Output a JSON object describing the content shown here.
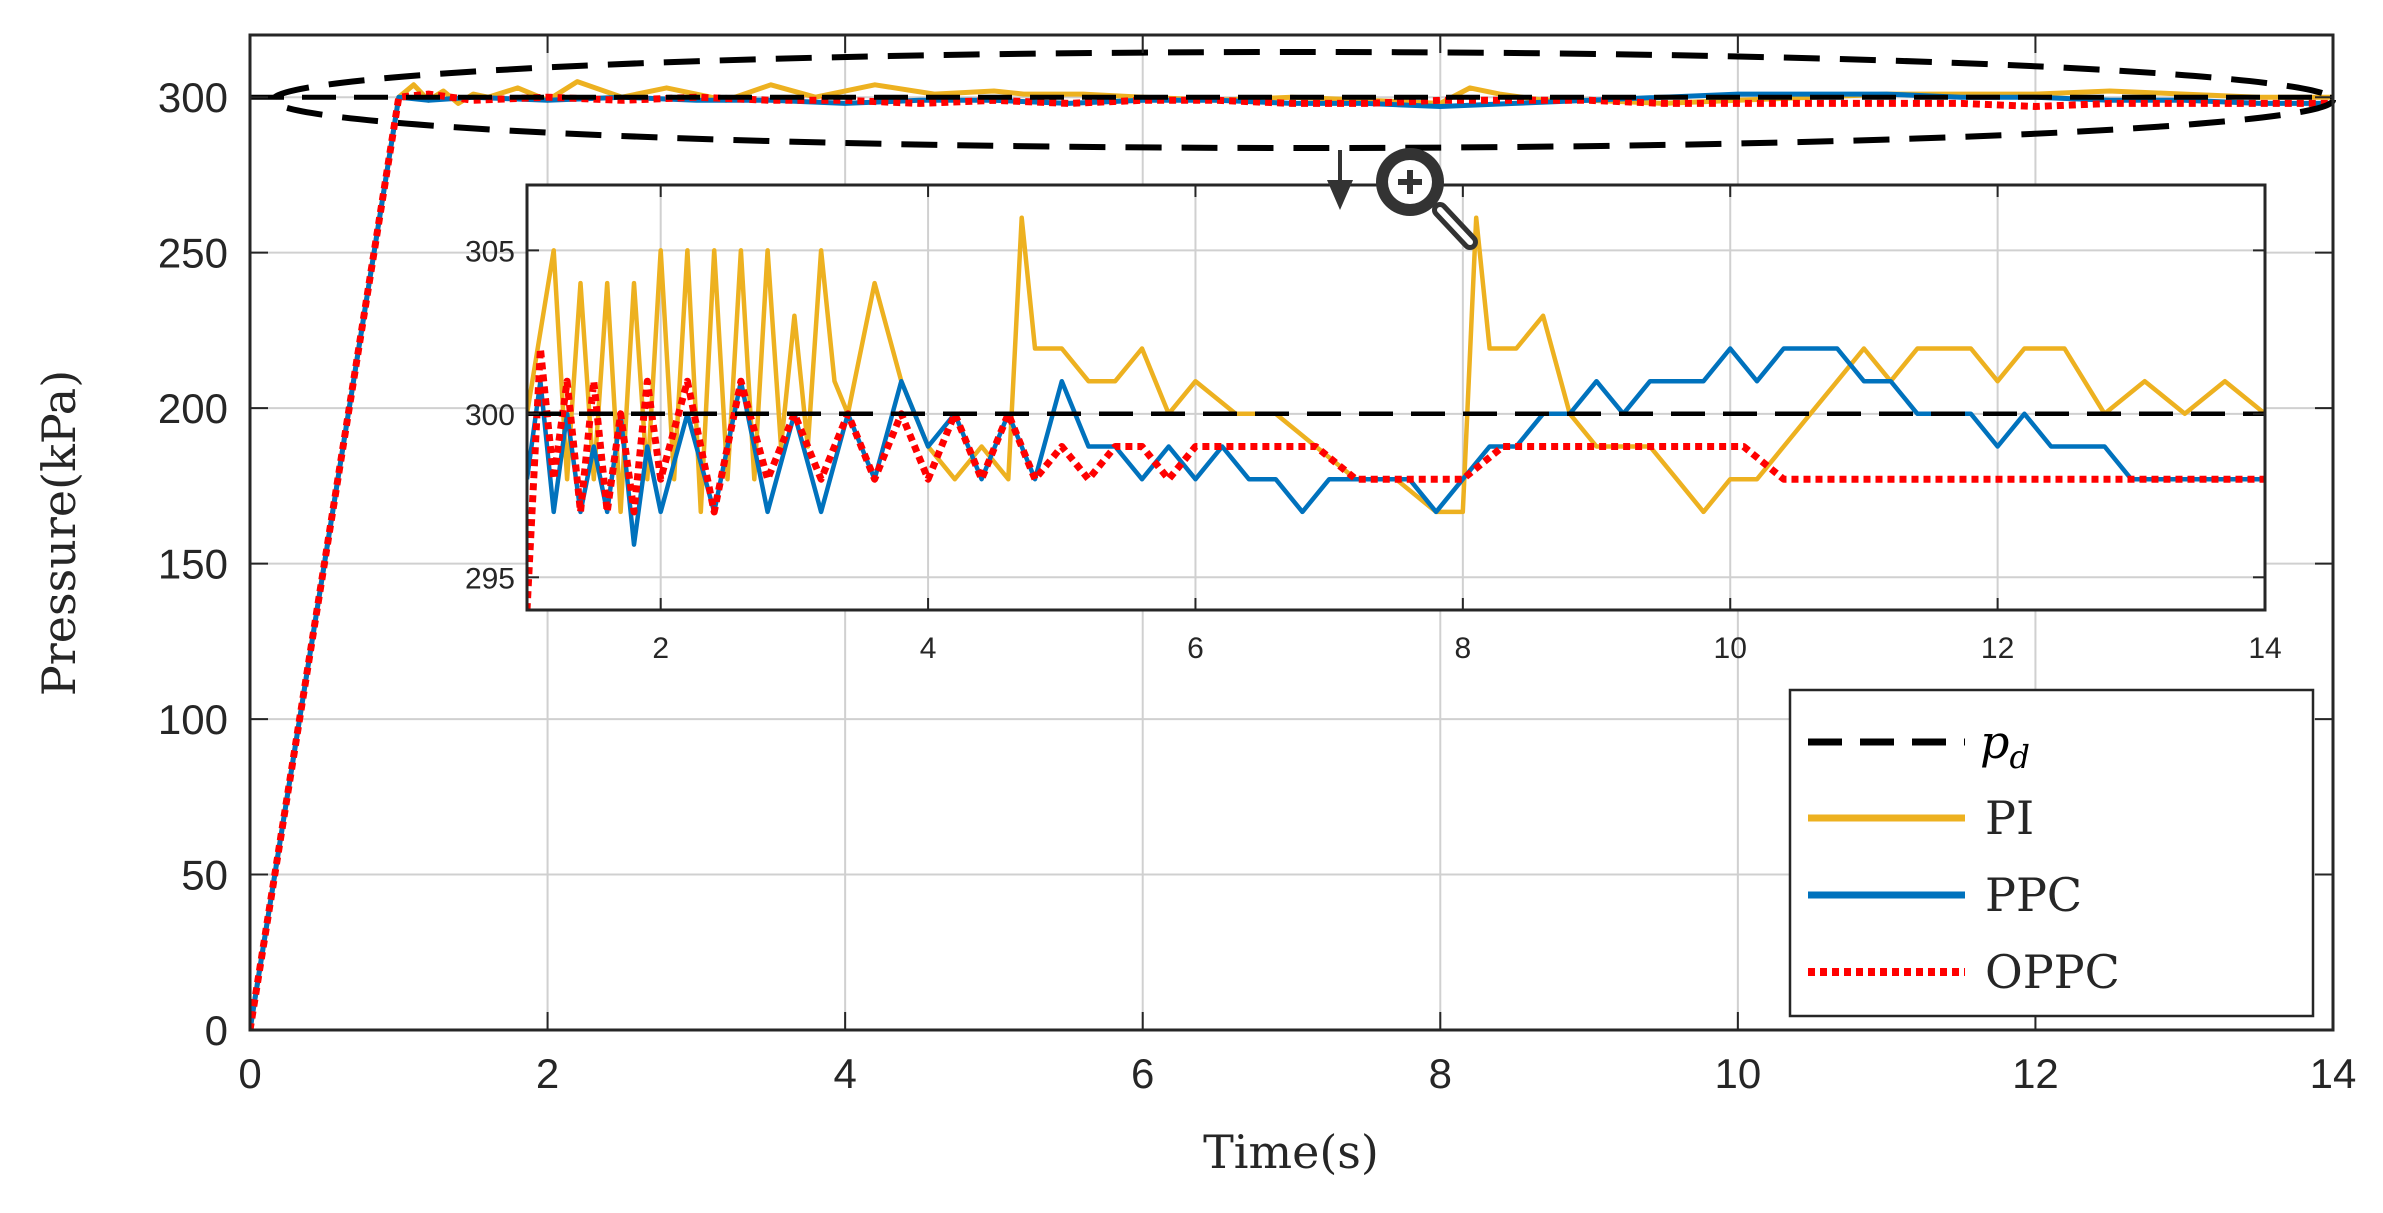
{
  "chart_data": [
    {
      "id": "main",
      "type": "line",
      "title": "",
      "xlabel": "Time(s)",
      "ylabel": "Pressure(kPa)",
      "xlim": [
        0,
        14
      ],
      "ylim": [
        0,
        320
      ],
      "grid": true,
      "x_ticks": [
        "0",
        "2",
        "4",
        "6",
        "8",
        "10",
        "12",
        "14"
      ],
      "y_ticks": [
        "0",
        "50",
        "100",
        "150",
        "200",
        "250",
        "300"
      ],
      "legend_position": "bottom-right",
      "legend": {
        "pd_base": "p",
        "pd_sub": "d",
        "labels": [
          "PI",
          "PPC",
          "OPPC"
        ]
      },
      "annotation": "dashed ellipse around steady-state region near 300 kPa with magnifier icon pointing to inset",
      "series": [
        {
          "name": "p_d",
          "color": "#000000",
          "style": "dashed",
          "x": [
            0,
            14
          ],
          "y": [
            300,
            300
          ]
        },
        {
          "name": "PI",
          "color": "#EDB120",
          "style": "solid",
          "x": [
            0,
            1,
            1.1,
            1.2,
            1.3,
            1.4,
            1.5,
            1.6,
            1.8,
            2.0,
            2.2,
            2.5,
            2.8,
            3.2,
            3.5,
            3.8,
            4.2,
            4.6,
            5.0,
            5.2,
            5.6,
            6.0,
            6.5,
            7.0,
            7.5,
            8.0,
            8.2,
            8.4,
            8.7,
            9.0,
            9.5,
            10.0,
            10.5,
            11.0,
            11.5,
            12.0,
            12.5,
            13.0,
            13.5,
            14.0
          ],
          "y": [
            0,
            300,
            304,
            299,
            302,
            298,
            301,
            300,
            303,
            299,
            305,
            300,
            303,
            299,
            304,
            300,
            304,
            301,
            302,
            301,
            301,
            300,
            299,
            300,
            299,
            298,
            303,
            301,
            299,
            299,
            298,
            299,
            300,
            301,
            301,
            301,
            302,
            301,
            300,
            300
          ]
        },
        {
          "name": "PPC",
          "color": "#0072BD",
          "style": "solid",
          "x": [
            0,
            1,
            1.2,
            1.5,
            2.0,
            2.5,
            3.0,
            3.5,
            4.0,
            4.5,
            5.0,
            5.5,
            6.0,
            6.5,
            7.0,
            7.5,
            8.0,
            8.5,
            9.0,
            9.5,
            10.0,
            10.5,
            11.0,
            11.5,
            12.0,
            12.5,
            13.0,
            13.5,
            14.0
          ],
          "y": [
            0,
            300,
            299,
            300,
            299,
            300,
            299,
            299,
            298,
            299,
            299,
            298,
            299,
            299,
            298,
            298,
            297,
            298,
            299,
            300,
            301,
            301,
            301,
            300,
            300,
            299,
            299,
            298,
            298
          ]
        },
        {
          "name": "OPPC",
          "color": "#FF0000",
          "style": "dotted",
          "x": [
            0,
            1,
            1.2,
            1.5,
            2.0,
            2.5,
            3.0,
            3.5,
            4.0,
            4.5,
            5.0,
            5.5,
            6.0,
            6.5,
            7.0,
            7.5,
            8.0,
            8.5,
            9.0,
            9.5,
            10.0,
            10.5,
            11.0,
            11.5,
            12.0,
            12.5,
            13.0,
            13.5,
            14.0
          ],
          "y": [
            0,
            300,
            301,
            299,
            300,
            299,
            300,
            299,
            299,
            298,
            299,
            298,
            299,
            299,
            298,
            298,
            299,
            299,
            299,
            298,
            298,
            298,
            298,
            298,
            297,
            298,
            298,
            298,
            298
          ]
        }
      ]
    },
    {
      "id": "inset",
      "type": "line",
      "title": "",
      "xlabel": "",
      "ylabel": "",
      "xlim": [
        1,
        14
      ],
      "ylim": [
        294,
        307
      ],
      "grid": true,
      "x_ticks": [
        "2",
        "4",
        "6",
        "8",
        "10",
        "12",
        "14"
      ],
      "y_ticks": [
        "295",
        "300",
        "305"
      ],
      "series": [
        {
          "name": "p_d",
          "color": "#000000",
          "style": "dashed",
          "x": [
            1,
            14
          ],
          "y": [
            300,
            300
          ]
        },
        {
          "name": "PI",
          "color": "#EDB120",
          "style": "solid",
          "x": [
            1.0,
            1.2,
            1.3,
            1.4,
            1.5,
            1.6,
            1.7,
            1.8,
            1.9,
            2.0,
            2.1,
            2.2,
            2.3,
            2.4,
            2.5,
            2.6,
            2.7,
            2.8,
            2.9,
            3.0,
            3.1,
            3.2,
            3.3,
            3.4,
            3.6,
            3.8,
            4.0,
            4.2,
            4.4,
            4.6,
            4.7,
            4.8,
            5.0,
            5.2,
            5.4,
            5.6,
            5.8,
            6.0,
            6.3,
            6.6,
            6.9,
            7.2,
            7.5,
            7.8,
            8.0,
            8.1,
            8.2,
            8.4,
            8.6,
            8.8,
            9.0,
            9.2,
            9.4,
            9.6,
            9.8,
            10.0,
            10.2,
            10.4,
            10.6,
            10.8,
            11.0,
            11.2,
            11.4,
            11.6,
            11.8,
            12.0,
            12.2,
            12.5,
            12.8,
            13.1,
            13.4,
            13.7,
            14.0
          ],
          "y": [
            300,
            305,
            298,
            304,
            298,
            304,
            297,
            304,
            298,
            305,
            298,
            305,
            297,
            305,
            298,
            305,
            298,
            305,
            299,
            303,
            299,
            305,
            301,
            300,
            304,
            301,
            299,
            298,
            299,
            298,
            306,
            302,
            302,
            301,
            301,
            302,
            300,
            301,
            300,
            300,
            299,
            298,
            298,
            297,
            297,
            306,
            302,
            302,
            303,
            300,
            299,
            299,
            299,
            298,
            297,
            298,
            298,
            299,
            300,
            301,
            302,
            301,
            302,
            302,
            302,
            301,
            302,
            302,
            300,
            301,
            300,
            301,
            300
          ]
        },
        {
          "name": "PPC",
          "color": "#0072BD",
          "style": "solid",
          "x": [
            1.0,
            1.1,
            1.2,
            1.3,
            1.4,
            1.5,
            1.6,
            1.7,
            1.8,
            1.9,
            2.0,
            2.2,
            2.4,
            2.6,
            2.8,
            3.0,
            3.2,
            3.4,
            3.6,
            3.8,
            4.0,
            4.2,
            4.4,
            4.6,
            4.8,
            5.0,
            5.2,
            5.4,
            5.6,
            5.8,
            6.0,
            6.2,
            6.4,
            6.6,
            6.8,
            7.0,
            7.2,
            7.4,
            7.6,
            7.8,
            8.0,
            8.2,
            8.4,
            8.6,
            8.8,
            9.0,
            9.2,
            9.4,
            9.6,
            9.8,
            10.0,
            10.2,
            10.4,
            10.6,
            10.8,
            11.0,
            11.2,
            11.4,
            11.6,
            11.8,
            12.0,
            12.2,
            12.4,
            12.6,
            12.8,
            13.0,
            13.2,
            13.4,
            13.6,
            13.8,
            14.0
          ],
          "y": [
            298,
            301,
            297,
            300,
            297,
            299,
            297,
            300,
            296,
            299,
            297,
            300,
            297,
            301,
            297,
            300,
            297,
            300,
            298,
            301,
            299,
            300,
            298,
            300,
            298,
            301,
            299,
            299,
            298,
            299,
            298,
            299,
            298,
            298,
            297,
            298,
            298,
            298,
            298,
            297,
            298,
            299,
            299,
            300,
            300,
            301,
            300,
            301,
            301,
            301,
            302,
            301,
            302,
            302,
            302,
            301,
            301,
            300,
            300,
            300,
            299,
            300,
            299,
            299,
            299,
            298,
            298,
            298,
            298,
            298,
            298
          ]
        },
        {
          "name": "OPPC",
          "color": "#FF0000",
          "style": "dotted",
          "x": [
            1.0,
            1.1,
            1.2,
            1.3,
            1.4,
            1.5,
            1.6,
            1.7,
            1.8,
            1.9,
            2.0,
            2.2,
            2.4,
            2.6,
            2.8,
            3.0,
            3.2,
            3.4,
            3.6,
            3.8,
            4.0,
            4.2,
            4.4,
            4.6,
            4.8,
            5.0,
            5.2,
            5.4,
            5.6,
            5.8,
            6.0,
            6.3,
            6.6,
            6.9,
            7.2,
            7.5,
            7.8,
            8.0,
            8.3,
            8.6,
            8.9,
            9.2,
            9.5,
            9.8,
            10.1,
            10.4,
            10.7,
            11.0,
            11.3,
            11.6,
            11.9,
            12.2,
            12.5,
            12.8,
            13.1,
            13.4,
            13.7,
            14.0
          ],
          "y": [
            294,
            302,
            298,
            301,
            297,
            301,
            297,
            300,
            297,
            301,
            298,
            301,
            297,
            301,
            298,
            300,
            298,
            300,
            298,
            300,
            298,
            300,
            298,
            300,
            298,
            299,
            298,
            299,
            299,
            298,
            299,
            299,
            299,
            299,
            298,
            298,
            298,
            298,
            299,
            299,
            299,
            299,
            299,
            299,
            299,
            298,
            298,
            298,
            298,
            298,
            298,
            298,
            298,
            298,
            298,
            298,
            298,
            298
          ]
        }
      ]
    }
  ]
}
